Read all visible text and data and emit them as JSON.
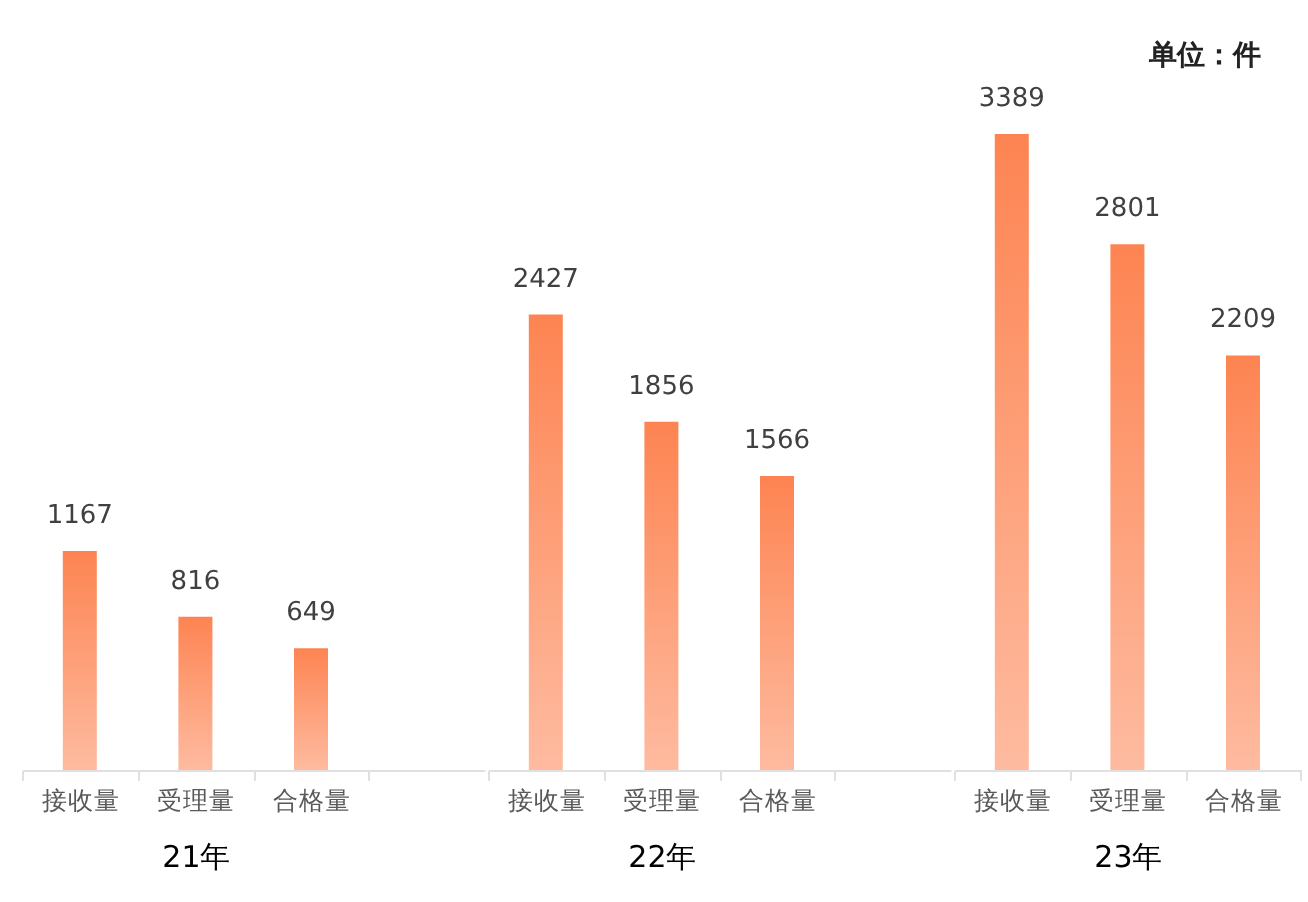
{
  "chart_data": [
    {
      "type": "bar",
      "categories": [
        "接收量",
        "受理量",
        "合格量"
      ],
      "values": [
        1167,
        816,
        649
      ],
      "color": "#fd8452",
      "data_labels": true,
      "xlabel": "21年"
    },
    {
      "type": "bar",
      "categories": [
        "接收量",
        "受理量",
        "合格量"
      ],
      "values": [
        2427,
        1856,
        1566
      ],
      "color": "#fd8452",
      "data_labels": true,
      "xlabel": "22年"
    },
    {
      "type": "bar",
      "categories": [
        "接收量",
        "受理量",
        "合格量"
      ],
      "values": [
        3389,
        2801,
        2209
      ],
      "color": "#fd8452",
      "data_labels": true,
      "xlabel": "23年",
      "annotations": [
        "单位：件"
      ]
    }
  ]
}
